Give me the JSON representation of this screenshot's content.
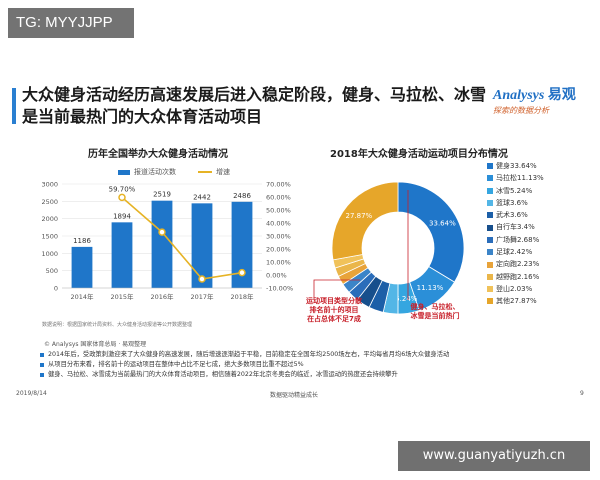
{
  "top_tag": "TG: MYYJJPP",
  "headline": "大众健身活动经历高速发展后进入稳定阶段，健身、马拉松、冰雪是当前最热门的大众体育活动项目",
  "logo": {
    "name": "Analysys",
    "cn": "易观",
    "sub": "探索的数据分析"
  },
  "left_chart": {
    "title": "历年全国举办大众健身活动情况",
    "legend_bar": "报道活动次数",
    "legend_line": "增速",
    "source": "数据说明：根据国家统计局资料、大众健身活动报道等公开数据整理"
  },
  "right_chart": {
    "title": "2018年大众健身活动运动项目分布情况",
    "annotation": [
      "运动项目类型分散",
      "排名前十的项目",
      "在占总体不足7成"
    ],
    "annotation2": [
      "健身、马拉松、",
      "冰雪是当前热门"
    ]
  },
  "chart_data": [
    {
      "type": "bar",
      "title": "历年全国举办大众健身活动情况",
      "categories": [
        "2014年",
        "2015年",
        "2016年",
        "2017年",
        "2018年"
      ],
      "series": [
        {
          "name": "报道活动次数",
          "type": "bar",
          "values": [
            1186,
            1894,
            2519,
            2442,
            2486
          ],
          "color": "#1f76c9"
        },
        {
          "name": "增速",
          "type": "line",
          "values": [
            null,
            59.7,
            33.0,
            -3.1,
            1.8
          ],
          "labels": [
            "",
            "59.70%",
            "",
            "",
            ""
          ],
          "color": "#e6b325"
        }
      ],
      "ylim": [
        0,
        3000
      ],
      "yticks": [
        "0",
        "500",
        "1000",
        "1500",
        "2000",
        "2500",
        "3000"
      ],
      "y2lim": [
        -10,
        70
      ],
      "y2ticks": [
        "-10.00%",
        "0.00%",
        "10.00%",
        "20.00%",
        "30.00%",
        "40.00%",
        "50.00%",
        "60.00%",
        "70.00%"
      ]
    },
    {
      "type": "pie",
      "title": "2018年大众健身活动运动项目分布情况",
      "slices": [
        {
          "label": "健身",
          "value": 33.64,
          "display": "健身33.64%",
          "color": "#1f76c9",
          "slice_label": "33.64%"
        },
        {
          "label": "马拉松",
          "value": 11.13,
          "display": "马拉松11.13%",
          "color": "#2b8fd8",
          "slice_label": "11.13%"
        },
        {
          "label": "冰雪",
          "value": 5.24,
          "display": "冰雪5.24%",
          "color": "#35a6e0",
          "slice_label": "5.24%"
        },
        {
          "label": "篮球",
          "value": 3.6,
          "display": "篮球3.6%",
          "color": "#53b6e6",
          "slice_label": ""
        },
        {
          "label": "武术",
          "value": 3.6,
          "display": "武术3.6%",
          "color": "#1c5fa8",
          "slice_label": ""
        },
        {
          "label": "自行车",
          "value": 3.4,
          "display": "自行车3.4%",
          "color": "#174f8c",
          "slice_label": ""
        },
        {
          "label": "广场舞",
          "value": 2.68,
          "display": "广场舞2.68%",
          "color": "#2a6dba",
          "slice_label": ""
        },
        {
          "label": "足球",
          "value": 2.42,
          "display": "足球2.42%",
          "color": "#3b84c8",
          "slice_label": ""
        },
        {
          "label": "定向跑",
          "value": 2.23,
          "display": "定向跑2.23%",
          "color": "#e8a33a",
          "slice_label": ""
        },
        {
          "label": "越野跑",
          "value": 2.16,
          "display": "越野跑2.16%",
          "color": "#eab64a",
          "slice_label": ""
        },
        {
          "label": "登山",
          "value": 2.03,
          "display": "登山2.03%",
          "color": "#f0c25a",
          "slice_label": ""
        },
        {
          "label": "其他",
          "value": 27.87,
          "display": "其他27.87%",
          "color": "#e6a62a",
          "slice_label": "27.87%"
        }
      ]
    }
  ],
  "copyright": "© Analysys 国家体育总局 · 易观整理",
  "notes": [
    "2014年后，受政策刺激迎来了大众健身的高速发展，随后增速逐渐趋于平稳，目前稳定在全国年均2500场左右，平均每省月均6场大众健身活动",
    "从项目分布来看，排名前十的运动项目在整体中占比不足七成，绝大多数项目比重不超过5%",
    "健身、马拉松、冰雪成为当前最热门的大众体育活动项目，相信随着2022年北京冬奥会的临近，冰雪运动的热度还会持续攀升"
  ],
  "footer": {
    "date": "2019/8/14",
    "center": "数据驱动精益成长",
    "page": "9"
  },
  "watermark_url": "www.guanyatiyuzh.cn"
}
